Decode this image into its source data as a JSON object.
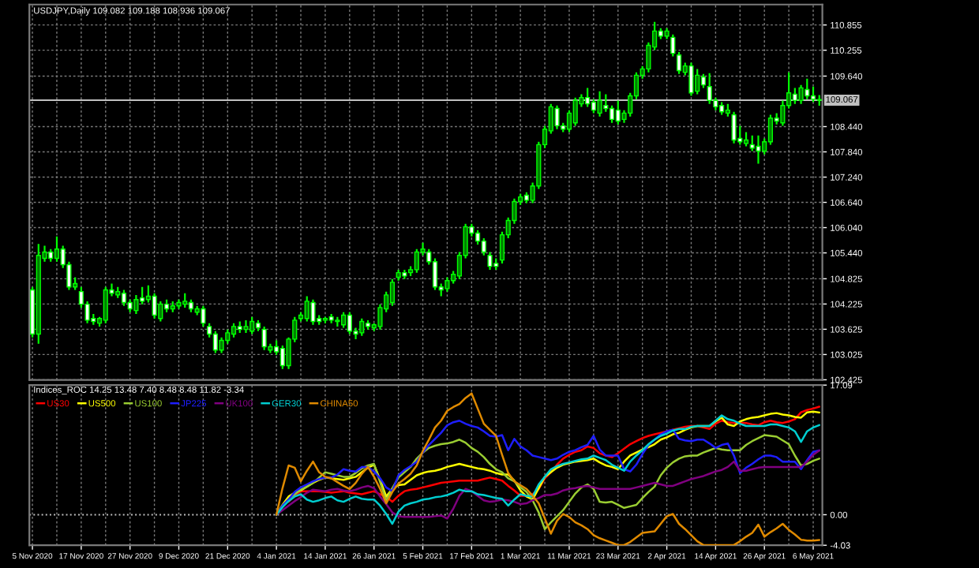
{
  "chart_data": [
    {
      "type": "candlestick",
      "title": "USDJPY,Daily 109.082 109.188 108.936 109.067",
      "categories": [
        null,
        null,
        null,
        null,
        null,
        null,
        null,
        null,
        null,
        null,
        null,
        null,
        null,
        null,
        null,
        null,
        null,
        null,
        null,
        null,
        null,
        null,
        null,
        null,
        null,
        null,
        null,
        null,
        null,
        null,
        null,
        null,
        null,
        null,
        null,
        null,
        null,
        null,
        null,
        null,
        null,
        null,
        null,
        null,
        null,
        null,
        null,
        null,
        null,
        null,
        null,
        null,
        null,
        null,
        null,
        null,
        null,
        null,
        null,
        null,
        null,
        null,
        null,
        null,
        null,
        null,
        null,
        null,
        null,
        null,
        null,
        null,
        null,
        null,
        null,
        null,
        null,
        null,
        null,
        null,
        null,
        null,
        null,
        null,
        null,
        null,
        null,
        null,
        null,
        null,
        null,
        null,
        null,
        null,
        null,
        null,
        null,
        null,
        null,
        null,
        null,
        null,
        null,
        null,
        null,
        null,
        null,
        null,
        null,
        null,
        null,
        null,
        null,
        null,
        null,
        null,
        null,
        null,
        null,
        null,
        null,
        null,
        null,
        null,
        null,
        null,
        null,
        null,
        null,
        null
      ],
      "ohlc": [
        [
          104.56,
          104.63,
          103.43,
          103.51
        ],
        [
          103.51,
          105.65,
          103.28,
          105.38
        ],
        [
          105.31,
          105.61,
          105.23,
          105.46
        ],
        [
          105.46,
          105.53,
          105.23,
          105.31
        ],
        [
          105.31,
          105.83,
          105.23,
          105.53
        ],
        [
          105.53,
          105.61,
          105.08,
          105.16
        ],
        [
          105.16,
          105.23,
          104.56,
          104.63
        ],
        [
          104.63,
          104.86,
          104.56,
          104.71
        ],
        [
          104.52,
          104.63,
          104.14,
          104.22
        ],
        [
          104.22,
          104.29,
          103.77,
          103.84
        ],
        [
          103.88,
          103.99,
          103.73,
          103.81
        ],
        [
          103.77,
          103.92,
          103.69,
          103.88
        ],
        [
          103.84,
          104.63,
          103.77,
          104.56
        ],
        [
          104.56,
          104.71,
          104.41,
          104.48
        ],
        [
          104.44,
          104.63,
          104.37,
          104.52
        ],
        [
          104.48,
          104.56,
          104.18,
          104.26
        ],
        [
          104.26,
          104.33,
          104.03,
          104.11
        ],
        [
          104.07,
          104.44,
          103.99,
          104.33
        ],
        [
          104.37,
          104.63,
          104.22,
          104.29
        ],
        [
          104.33,
          104.67,
          104.26,
          104.41
        ],
        [
          104.41,
          104.48,
          103.88,
          103.96
        ],
        [
          103.88,
          104.29,
          103.81,
          104.22
        ],
        [
          104.22,
          104.33,
          104.03,
          104.11
        ],
        [
          104.11,
          104.29,
          104.03,
          104.18
        ],
        [
          104.18,
          104.33,
          104.11,
          104.26
        ],
        [
          104.22,
          104.48,
          104.14,
          104.29
        ],
        [
          104.26,
          104.33,
          104.03,
          104.11
        ],
        [
          104.03,
          104.18,
          103.96,
          104.11
        ],
        [
          104.11,
          104.18,
          103.69,
          103.77
        ],
        [
          103.69,
          103.77,
          103.43,
          103.51
        ],
        [
          103.51,
          103.58,
          103.06,
          103.13
        ],
        [
          103.13,
          103.43,
          103.06,
          103.36
        ],
        [
          103.36,
          103.62,
          103.28,
          103.54
        ],
        [
          103.51,
          103.77,
          103.43,
          103.69
        ],
        [
          103.69,
          103.81,
          103.54,
          103.62
        ],
        [
          103.62,
          103.84,
          103.54,
          103.69
        ],
        [
          103.58,
          103.92,
          103.51,
          103.81
        ],
        [
          103.77,
          103.84,
          103.58,
          103.66
        ],
        [
          103.62,
          103.69,
          103.13,
          103.21
        ],
        [
          103.13,
          103.28,
          103.06,
          103.21
        ],
        [
          103.21,
          103.36,
          103.02,
          103.09
        ],
        [
          103.17,
          103.24,
          102.68,
          102.76
        ],
        [
          102.76,
          103.43,
          102.68,
          103.39
        ],
        [
          103.39,
          103.92,
          103.32,
          103.84
        ],
        [
          103.88,
          104.03,
          103.81,
          103.96
        ],
        [
          103.88,
          104.41,
          103.81,
          104.29
        ],
        [
          104.26,
          104.33,
          103.73,
          103.81
        ],
        [
          103.88,
          103.96,
          103.73,
          103.81
        ],
        [
          103.84,
          103.92,
          103.77,
          103.88
        ],
        [
          103.92,
          103.99,
          103.77,
          103.84
        ],
        [
          103.81,
          103.92,
          103.69,
          103.84
        ],
        [
          103.73,
          104.03,
          103.66,
          103.96
        ],
        [
          103.96,
          104.03,
          103.51,
          103.58
        ],
        [
          103.58,
          103.66,
          103.39,
          103.51
        ],
        [
          103.54,
          103.88,
          103.47,
          103.81
        ],
        [
          103.77,
          103.84,
          103.62,
          103.69
        ],
        [
          103.66,
          103.77,
          103.58,
          103.73
        ],
        [
          103.69,
          104.22,
          103.62,
          104.14
        ],
        [
          104.11,
          104.52,
          104.03,
          104.44
        ],
        [
          104.26,
          104.82,
          104.18,
          104.74
        ],
        [
          104.86,
          105.04,
          104.78,
          104.97
        ],
        [
          104.97,
          105.04,
          104.82,
          104.89
        ],
        [
          104.97,
          105.12,
          104.89,
          105.04
        ],
        [
          105.04,
          105.53,
          104.97,
          105.46
        ],
        [
          105.46,
          105.68,
          105.38,
          105.53
        ],
        [
          105.46,
          105.53,
          105.16,
          105.23
        ],
        [
          105.23,
          105.31,
          104.56,
          104.63
        ],
        [
          104.63,
          104.71,
          104.41,
          104.56
        ],
        [
          104.59,
          104.86,
          104.52,
          104.78
        ],
        [
          104.78,
          105.01,
          104.71,
          104.93
        ],
        [
          104.89,
          105.46,
          104.82,
          105.38
        ],
        [
          105.38,
          106.13,
          105.31,
          106.06
        ],
        [
          106.06,
          106.13,
          105.83,
          105.91
        ],
        [
          105.91,
          105.98,
          105.64,
          105.72
        ],
        [
          105.72,
          105.79,
          105.38,
          105.46
        ],
        [
          105.38,
          105.46,
          105.04,
          105.12
        ],
        [
          105.19,
          105.31,
          105.04,
          105.12
        ],
        [
          105.27,
          105.94,
          105.19,
          105.87
        ],
        [
          105.87,
          106.28,
          105.79,
          106.21
        ],
        [
          106.21,
          106.73,
          106.13,
          106.66
        ],
        [
          106.66,
          106.84,
          106.58,
          106.77
        ],
        [
          106.81,
          106.88,
          106.62,
          106.69
        ],
        [
          106.69,
          107.11,
          106.62,
          107.03
        ],
        [
          107.03,
          108.08,
          106.96,
          108.01
        ],
        [
          108.01,
          108.46,
          107.93,
          108.38
        ],
        [
          108.34,
          108.98,
          108.27,
          108.91
        ],
        [
          108.87,
          108.94,
          108.38,
          108.46
        ],
        [
          108.46,
          108.53,
          108.31,
          108.38
        ],
        [
          108.38,
          108.83,
          108.31,
          108.76
        ],
        [
          108.53,
          109.13,
          108.46,
          109.06
        ],
        [
          108.98,
          109.21,
          108.91,
          109.13
        ],
        [
          109.13,
          109.36,
          108.91,
          108.98
        ],
        [
          109.02,
          109.09,
          108.76,
          108.83
        ],
        [
          108.76,
          109.28,
          108.68,
          109.06
        ],
        [
          108.94,
          109.21,
          108.79,
          108.87
        ],
        [
          108.87,
          108.94,
          108.53,
          108.61
        ],
        [
          108.83,
          109.06,
          108.49,
          108.57
        ],
        [
          108.61,
          108.83,
          108.53,
          108.76
        ],
        [
          108.76,
          109.24,
          108.68,
          109.17
        ],
        [
          109.17,
          109.73,
          109.09,
          109.66
        ],
        [
          109.66,
          109.88,
          109.58,
          109.81
        ],
        [
          109.81,
          110.44,
          109.73,
          110.37
        ],
        [
          110.33,
          110.93,
          110.26,
          110.71
        ],
        [
          110.71,
          110.78,
          110.52,
          110.59
        ],
        [
          110.59,
          110.78,
          110.52,
          110.71
        ],
        [
          110.56,
          110.63,
          110.11,
          110.18
        ],
        [
          110.14,
          110.21,
          109.69,
          109.77
        ],
        [
          109.73,
          109.96,
          109.66,
          109.88
        ],
        [
          109.88,
          109.96,
          109.17,
          109.24
        ],
        [
          109.28,
          109.81,
          109.21,
          109.66
        ],
        [
          109.62,
          109.69,
          109.36,
          109.43
        ],
        [
          109.39,
          109.71,
          108.98,
          109.06
        ],
        [
          109.06,
          109.13,
          108.83,
          108.91
        ],
        [
          108.94,
          109.02,
          108.72,
          108.79
        ],
        [
          108.76,
          108.98,
          108.68,
          108.83
        ],
        [
          108.72,
          108.79,
          108.04,
          108.12
        ],
        [
          108.16,
          108.46,
          108.01,
          108.08
        ],
        [
          108.04,
          108.31,
          107.97,
          108.12
        ],
        [
          108.01,
          108.23,
          107.86,
          107.93
        ],
        [
          107.97,
          108.23,
          107.56,
          107.86
        ],
        [
          107.86,
          108.16,
          107.78,
          108.08
        ],
        [
          108.08,
          108.72,
          108.01,
          108.64
        ],
        [
          108.64,
          108.76,
          108.49,
          108.57
        ],
        [
          108.53,
          109.06,
          108.46,
          108.94
        ],
        [
          108.94,
          109.73,
          108.87,
          109.24
        ],
        [
          109.21,
          109.36,
          108.98,
          109.06
        ],
        [
          109.06,
          109.43,
          108.98,
          109.36
        ],
        [
          109.32,
          109.58,
          109.09,
          109.17
        ],
        [
          109.17,
          109.39,
          109.02,
          109.09
        ],
        [
          109.082,
          109.188,
          108.936,
          109.067
        ]
      ],
      "color": "#00ff00",
      "colors": [
        "#ffffff",
        "#008000",
        "#008000",
        "#ffffff",
        "#008000",
        "#ffffff",
        "#ffffff",
        "#008000",
        "#ffffff",
        "#ffffff",
        "#ffffff",
        "#008000",
        "#008000",
        "#ffffff",
        "#008000",
        "#ffffff",
        "#ffffff",
        "#008000",
        "#ffffff",
        "#008000",
        "#ffffff",
        "#008000",
        "#ffffff",
        "#008000",
        "#008000",
        "#008000",
        "#ffffff",
        "#008000",
        "#ffffff",
        "#ffffff",
        "#ffffff",
        "#008000",
        "#008000",
        "#008000",
        "#ffffff",
        "#008000",
        "#008000",
        "#ffffff",
        "#ffffff",
        "#008000",
        "#ffffff",
        "#ffffff",
        "#008000",
        "#008000",
        "#008000",
        "#008000",
        "#ffffff",
        "#ffffff",
        "#008000",
        "#ffffff",
        "#008000",
        "#008000",
        "#ffffff",
        "#ffffff",
        "#008000",
        "#ffffff",
        "#008000",
        "#008000",
        "#008000",
        "#008000",
        "#008000",
        "#ffffff",
        "#008000",
        "#008000",
        "#008000",
        "#ffffff",
        "#ffffff",
        "#ffffff",
        "#008000",
        "#008000",
        "#008000",
        "#008000",
        "#ffffff",
        "#ffffff",
        "#ffffff",
        "#ffffff",
        "#ffffff",
        "#008000",
        "#008000",
        "#008000",
        "#008000",
        "#ffffff",
        "#008000",
        "#008000",
        "#008000",
        "#008000",
        "#ffffff",
        "#ffffff",
        "#008000",
        "#008000",
        "#008000",
        "#ffffff",
        "#ffffff",
        "#008000",
        "#ffffff",
        "#ffffff",
        "#ffffff",
        "#008000",
        "#008000",
        "#008000",
        "#008000",
        "#008000",
        "#008000",
        "#ffffff",
        "#008000",
        "#ffffff",
        "#ffffff",
        "#008000",
        "#ffffff",
        "#008000",
        "#ffffff",
        "#ffffff",
        "#ffffff",
        "#ffffff",
        "#008000",
        "#ffffff",
        "#ffffff",
        "#008000",
        "#ffffff",
        "#ffffff",
        "#008000",
        "#008000",
        "#ffffff",
        "#008000",
        "#008000",
        "#ffffff",
        "#008000",
        "#ffffff",
        "#ffffff",
        "#ffffff"
      ],
      "ylim": [
        102.42,
        111.34
      ],
      "yticks": [
        110.855,
        110.255,
        {
          "value": 109.64,
          "label": "109.640"
        },
        {
          "value": 108.44,
          "label": "108.440"
        },
        {
          "value": 107.84,
          "label": "107.840"
        },
        {
          "value": 107.24,
          "label": "107.240"
        },
        {
          "value": 106.64,
          "label": "106.640"
        },
        {
          "value": 106.04,
          "label": "106.040"
        },
        {
          "value": 105.44,
          "label": "105.440"
        },
        104.825,
        104.225,
        103.625,
        103.025,
        102.425
      ],
      "ref_lines": [
        {
          "axis": "y",
          "value": 109.067,
          "label": "109.067",
          "color": "#c0c0c0",
          "line_style": "solid"
        }
      ],
      "grid": true,
      "tick_labels": "y"
    },
    {
      "type": "line",
      "title": "Indices_ROC 14.25 13.48 7.40 8.48 8.48 11.82 -3.34",
      "categories": [
        "5 Nov 2020",
        null,
        null,
        null,
        null,
        null,
        null,
        null,
        "17 Nov 2020",
        null,
        null,
        null,
        null,
        null,
        null,
        null,
        "27 Nov 2020",
        null,
        null,
        null,
        null,
        null,
        null,
        null,
        "9 Dec 2020",
        null,
        null,
        null,
        null,
        null,
        null,
        null,
        "21 Dec 2020",
        null,
        null,
        null,
        null,
        null,
        null,
        null,
        "4 Jan 2021",
        null,
        null,
        null,
        null,
        null,
        null,
        null,
        "14 Jan 2021",
        null,
        null,
        null,
        null,
        null,
        null,
        null,
        "26 Jan 2021",
        null,
        null,
        null,
        null,
        null,
        null,
        null,
        "5 Feb 2021",
        null,
        null,
        null,
        null,
        null,
        null,
        null,
        "17 Feb 2021",
        null,
        null,
        null,
        null,
        null,
        null,
        null,
        "1 Mar 2021",
        null,
        null,
        null,
        null,
        null,
        null,
        null,
        "11 Mar 2021",
        null,
        null,
        null,
        null,
        null,
        null,
        null,
        "23 Mar 2021",
        null,
        null,
        null,
        null,
        null,
        null,
        null,
        "2 Apr 2021",
        null,
        null,
        null,
        null,
        null,
        null,
        null,
        "14 Apr 2021",
        null,
        null,
        null,
        null,
        null,
        null,
        null,
        "26 Apr 2021",
        null,
        null,
        null,
        null,
        null,
        null,
        null,
        "6 May 2021",
        null
      ],
      "series": [
        {
          "name": "US30",
          "color": "#ff0000",
          "values": [
            null,
            null,
            null,
            null,
            null,
            null,
            null,
            null,
            null,
            null,
            null,
            null,
            null,
            null,
            null,
            null,
            null,
            null,
            null,
            null,
            null,
            null,
            null,
            null,
            null,
            null,
            null,
            null,
            null,
            null,
            null,
            null,
            null,
            null,
            null,
            null,
            null,
            null,
            null,
            null,
            null,
            null,
            1.7,
            2.5,
            3.1,
            3.1,
            3.1,
            3.1,
            3.0,
            2.9,
            3.0,
            3.1,
            2.9,
            2.8,
            2.7,
            2.9,
            3.1,
            2.7,
            2.4,
            1.7,
            2.5,
            3.1,
            3.3,
            3.4,
            3.6,
            3.8,
            4.0,
            4.2,
            4.3,
            4.4,
            4.5,
            4.5,
            4.5,
            4.5,
            4.7,
            4.9,
            4.7,
            4.5,
            3.8,
            3.2,
            2.5,
            2.5,
            2.7,
            3.4,
            4.8,
            5.6,
            6.6,
            7.4,
            7.9,
            8.3,
            8.5,
            9.0,
            8.8,
            8.1,
            7.8,
            7.6,
            8.1,
            8.7,
            9.3,
            9.7,
            10.1,
            10.4,
            10.6,
            10.8,
            11.0,
            11.2,
            11.4,
            11.6,
            11.7,
            11.7,
            11.5,
            11.3,
            12.0,
            12.4,
            12.2,
            12.1,
            12.1,
            12.1,
            11.9,
            11.8,
            12.2,
            12.4,
            12.2,
            12.1,
            12.3,
            12.6,
            13.5,
            13.8,
            14.0,
            14.25
          ]
        },
        {
          "name": "US500",
          "color": "#ffff00",
          "values": [
            null,
            null,
            null,
            null,
            null,
            null,
            null,
            null,
            null,
            null,
            null,
            null,
            null,
            null,
            null,
            null,
            null,
            null,
            null,
            null,
            null,
            null,
            null,
            null,
            null,
            null,
            null,
            null,
            null,
            null,
            null,
            null,
            null,
            null,
            null,
            null,
            null,
            null,
            null,
            null,
            0,
            1.3,
            2.4,
            2.9,
            3.2,
            3.7,
            4.2,
            4.6,
            4.9,
            4.8,
            4.7,
            4.6,
            4.8,
            5.0,
            5.6,
            6.2,
            6.6,
            4.6,
            2.4,
            3.4,
            3.9,
            4.0,
            4.6,
            5.2,
            5.5,
            5.7,
            5.8,
            6.0,
            6.3,
            6.5,
            6.7,
            6.5,
            6.3,
            6.1,
            6.0,
            5.8,
            5.5,
            5.3,
            5.3,
            4.5,
            3.2,
            2.4,
            2.0,
            3.5,
            5.0,
            5.6,
            6.2,
            6.6,
            6.8,
            7.0,
            7.1,
            7.2,
            7.4,
            6.9,
            6.5,
            6.3,
            6.0,
            7.0,
            7.8,
            8.2,
            8.6,
            8.9,
            9.3,
            9.9,
            10.2,
            10.6,
            10.8,
            11.2,
            11.5,
            11.7,
            11.7,
            11.7,
            12.3,
            12.8,
            11.9,
            11.7,
            12.3,
            12.6,
            12.8,
            12.9,
            13.1,
            13.3,
            13.4,
            13.2,
            13.1,
            12.9,
            12.8,
            13.5,
            13.6,
            13.48
          ]
        },
        {
          "name": "US100",
          "color": "#9acd32",
          "values": [
            null,
            null,
            null,
            null,
            null,
            null,
            null,
            null,
            null,
            null,
            null,
            null,
            null,
            null,
            null,
            null,
            null,
            null,
            null,
            null,
            null,
            null,
            null,
            null,
            null,
            null,
            null,
            null,
            null,
            null,
            null,
            null,
            null,
            null,
            null,
            null,
            null,
            null,
            null,
            null,
            0,
            1.2,
            2.1,
            2.7,
            3.3,
            3.7,
            4.2,
            4.9,
            5.6,
            5.4,
            5.2,
            5.0,
            5.0,
            5.5,
            6.1,
            6.5,
            6.7,
            4.3,
            1.8,
            3.5,
            4.9,
            5.6,
            6.3,
            7.4,
            8.2,
            8.8,
            9.1,
            9.3,
            9.4,
            9.6,
            9.9,
            9.5,
            8.8,
            8.3,
            7.6,
            6.7,
            6.0,
            5.6,
            4.8,
            4.4,
            3.6,
            3.0,
            1.9,
            0.3,
            -1.9,
            -1.0,
            -0.2,
            0.6,
            1.7,
            2.8,
            3.6,
            4.0,
            3.4,
            1.7,
            1.6,
            1.7,
            1.3,
            0.9,
            1.1,
            1.3,
            2.2,
            3.0,
            3.7,
            5.2,
            6.2,
            6.9,
            7.4,
            7.7,
            7.8,
            7.8,
            8.2,
            8.5,
            8.8,
            8.6,
            8.5,
            8.5,
            8.5,
            9.2,
            9.7,
            10.1,
            10.5,
            10.4,
            10.3,
            9.8,
            9.3,
            7.8,
            6.5,
            6.7,
            7.1,
            7.4
          ]
        },
        {
          "name": "JP225",
          "color": "#1e1eff",
          "values": [
            null,
            null,
            null,
            null,
            null,
            null,
            null,
            null,
            null,
            null,
            null,
            null,
            null,
            null,
            null,
            null,
            null,
            null,
            null,
            null,
            null,
            null,
            null,
            null,
            null,
            null,
            null,
            null,
            null,
            null,
            null,
            null,
            null,
            null,
            null,
            null,
            null,
            null,
            null,
            null,
            0,
            1.2,
            2.0,
            3.0,
            3.6,
            4.0,
            4.4,
            4.7,
            4.9,
            4.9,
            5.3,
            6.0,
            5.8,
            5.7,
            6.3,
            6.3,
            5.7,
            4.8,
            3.6,
            3.1,
            5.2,
            5.9,
            6.4,
            7.0,
            8.2,
            9.2,
            10.0,
            10.8,
            11.8,
            12.2,
            12.4,
            12.0,
            11.7,
            11.5,
            11.0,
            10.4,
            10.3,
            10.5,
            8.5,
            10.0,
            9.0,
            8.5,
            7.8,
            7.6,
            7.4,
            7.2,
            7.4,
            7.9,
            8.3,
            8.5,
            8.9,
            9.2,
            10.4,
            8.6,
            7.8,
            7.8,
            7.8,
            6.0,
            5.7,
            6.6,
            8.0,
            9.2,
            9.9,
            10.6,
            11.0,
            11.2,
            10.0,
            9.8,
            9.7,
            9.9,
            9.9,
            9.4,
            8.8,
            9.2,
            9.4,
            7.8,
            5.5,
            6.2,
            6.7,
            7.3,
            7.8,
            7.8,
            7.6,
            7.0,
            7.0,
            7.0,
            6.0,
            7.2,
            8.3,
            8.48
          ]
        },
        {
          "name": "UK100",
          "color": "#800080",
          "values": [
            null,
            null,
            null,
            null,
            null,
            null,
            null,
            null,
            null,
            null,
            null,
            null,
            null,
            null,
            null,
            null,
            null,
            null,
            null,
            null,
            null,
            null,
            null,
            null,
            null,
            null,
            null,
            null,
            null,
            null,
            null,
            null,
            null,
            null,
            null,
            null,
            null,
            null,
            null,
            null,
            0,
            0.6,
            1.2,
            1.8,
            2.3,
            2.9,
            3.3,
            3.2,
            3.1,
            3.3,
            3.4,
            3.2,
            3.1,
            3.3,
            3.6,
            3.8,
            3.5,
            2.4,
            1.4,
            0.3,
            -0.2,
            -0.3,
            -0.3,
            -0.3,
            -0.3,
            -0.3,
            -0.2,
            -0.1,
            -0.5,
            0.8,
            2.5,
            3.4,
            3.1,
            2.5,
            1.9,
            1.7,
            1.8,
            2.0,
            1.9,
            1.7,
            1.4,
            1.5,
            1.9,
            2.2,
            2.6,
            2.6,
            2.8,
            3.2,
            3.4,
            3.5,
            3.7,
            3.8,
            3.6,
            3.4,
            3.4,
            3.4,
            3.4,
            3.4,
            3.4,
            3.6,
            3.8,
            4.0,
            4.2,
            4.0,
            3.8,
            3.8,
            4.1,
            4.4,
            4.7,
            4.9,
            5.1,
            5.4,
            5.7,
            5.9,
            6.3,
            7.0,
            5.8,
            5.8,
            6.0,
            6.2,
            6.3,
            6.3,
            6.3,
            6.3,
            6.3,
            6.3,
            6.3,
            7.0,
            7.9,
            8.48
          ]
        },
        {
          "name": "GER30",
          "color": "#00ced1",
          "values": [
            null,
            null,
            null,
            null,
            null,
            null,
            null,
            null,
            null,
            null,
            null,
            null,
            null,
            null,
            null,
            null,
            null,
            null,
            null,
            null,
            null,
            null,
            null,
            null,
            null,
            null,
            null,
            null,
            null,
            null,
            null,
            null,
            null,
            null,
            null,
            null,
            null,
            null,
            null,
            null,
            0,
            1.0,
            1.8,
            2.4,
            2.7,
            2.0,
            1.7,
            1.9,
            2.2,
            2.4,
            1.9,
            1.7,
            2.1,
            2.4,
            2.1,
            2.0,
            2.0,
            1.2,
            0.1,
            -1.2,
            0.4,
            1.2,
            1.5,
            1.7,
            2.0,
            2.1,
            2.3,
            2.4,
            2.6,
            2.9,
            3.3,
            3.1,
            3.1,
            2.7,
            2.6,
            2.4,
            2.2,
            2.1,
            1.2,
            2.0,
            2.7,
            2.5,
            2.4,
            4.0,
            5.0,
            6.0,
            6.4,
            6.7,
            6.9,
            7.1,
            7.3,
            7.4,
            7.8,
            7.5,
            7.2,
            6.6,
            6.2,
            5.8,
            7.0,
            7.8,
            8.5,
            9.3,
            9.9,
            10.4,
            10.7,
            11.1,
            11.3,
            11.3,
            11.6,
            11.7,
            11.7,
            11.7,
            12.4,
            13.1,
            12.6,
            12.4,
            12.0,
            11.7,
            11.7,
            11.7,
            11.7,
            11.9,
            11.9,
            11.7,
            11.5,
            11.0,
            9.6,
            11.0,
            11.5,
            11.82
          ]
        },
        {
          "name": "CHINA50",
          "color": "#e08a00",
          "values": [
            null,
            null,
            null,
            null,
            null,
            null,
            null,
            null,
            null,
            null,
            null,
            null,
            null,
            null,
            null,
            null,
            null,
            null,
            null,
            null,
            null,
            null,
            null,
            null,
            null,
            null,
            null,
            null,
            null,
            null,
            null,
            null,
            null,
            null,
            null,
            null,
            null,
            null,
            null,
            null,
            0,
            3.5,
            6.5,
            6.2,
            4.4,
            5.8,
            7.0,
            5.6,
            5.0,
            4.8,
            4.3,
            3.8,
            3.4,
            4.2,
            5.4,
            6.3,
            5.0,
            3.4,
            1.5,
            3.0,
            4.1,
            4.7,
            5.4,
            6.5,
            8.4,
            9.9,
            11.5,
            12.4,
            13.7,
            14.2,
            14.6,
            15.4,
            16.0,
            14.0,
            12.0,
            11.2,
            10.4,
            7.9,
            5.5,
            4.4,
            3.9,
            3.4,
            2.5,
            1.5,
            -0.5,
            -2.5,
            -0.8,
            0.1,
            -0.3,
            -1.0,
            -1.4,
            -1.9,
            -2.7,
            -3.1,
            -3.4,
            -3.7,
            -4.0,
            -4.0,
            -3.6,
            -3.0,
            -2.4,
            -2.3,
            -2.2,
            -1.2,
            -0.2,
            0.1,
            -1.2,
            -1.9,
            -2.7,
            -3.5,
            -4.0,
            -4.0,
            -4.0,
            -4.0,
            -4.0,
            -4.0,
            -3.5,
            -2.9,
            -2.4,
            -1.3,
            -2.9,
            -2.3,
            -1.8,
            -1.2,
            -2.0,
            -2.6,
            -3.3,
            -3.4,
            -3.4,
            -3.34
          ]
        }
      ],
      "ylim": [
        -4.03,
        17.09
      ],
      "yticks": [
        17.09,
        {
          "value": 0,
          "label": "0.00"
        },
        -4.03
      ],
      "ref_lines": [
        {
          "axis": "y",
          "value": 0,
          "label": null,
          "color": "#c0c0c0",
          "line_style": "dotted"
        }
      ],
      "legend": "top left",
      "grid": "x"
    }
  ]
}
